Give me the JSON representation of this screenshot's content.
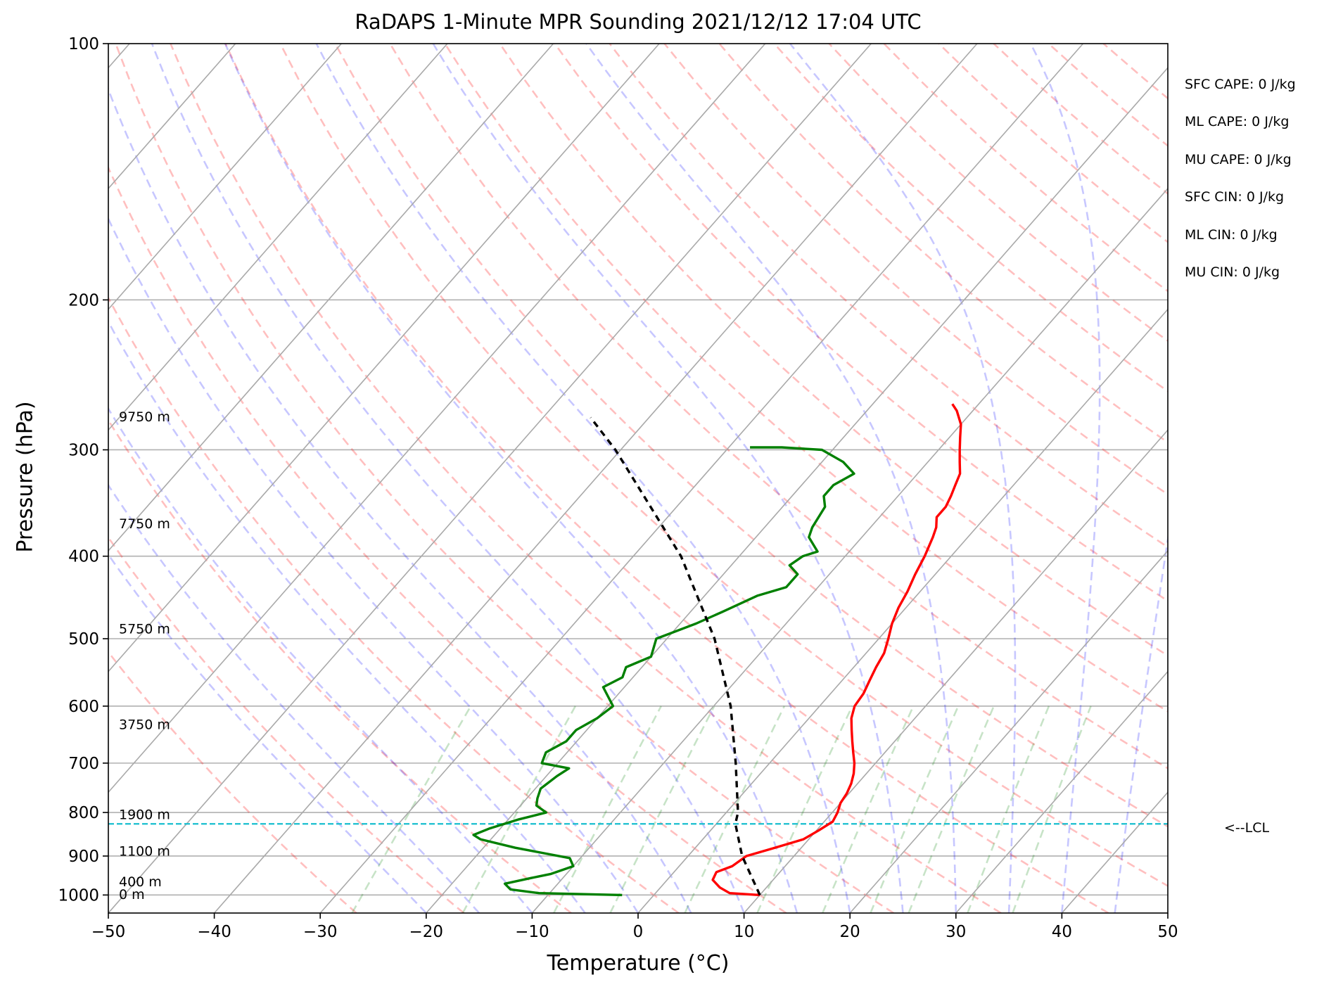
{
  "chart_data": {
    "type": "skew-t",
    "title": "RaDAPS 1-Minute MPR Sounding 2021/12/12 17:04 UTC",
    "xlabel": "Temperature (°C)",
    "ylabel": "Pressure (hPa)",
    "xlim": [
      -50,
      50
    ],
    "ylim": [
      1050,
      100
    ],
    "y_scale": "log",
    "grid": true,
    "x_ticks": [
      "−50",
      "−40",
      "−30",
      "−20",
      "−10",
      "0",
      "10",
      "20",
      "30",
      "40",
      "50"
    ],
    "y_ticks": [
      100,
      200,
      300,
      400,
      500,
      600,
      700,
      800,
      900,
      1000
    ],
    "height_labels": [
      {
        "label": "9750 m",
        "p": 275
      },
      {
        "label": "7750 m",
        "p": 367
      },
      {
        "label": "5750 m",
        "p": 488
      },
      {
        "label": "3750 m",
        "p": 632
      },
      {
        "label": "1900 m",
        "p": 806
      },
      {
        "label": "1100 m",
        "p": 890
      },
      {
        "label": "400 m",
        "p": 967
      },
      {
        "label": "0 m",
        "p": 1000
      }
    ],
    "lcl": {
      "pressure": 825,
      "label": "<--LCL"
    },
    "stats": [
      "SFC CAPE: 0 J/kg",
      "ML CAPE: 0 J/kg",
      "MU CAPE: 0 J/kg",
      "SFC CIN: 0 J/kg",
      "ML CIN: 0 J/kg",
      "MU CIN: 0 J/kg"
    ],
    "series": [
      {
        "name": "Temperature",
        "color": "#ff0000",
        "points": [
          [
            1000,
            10
          ],
          [
            995,
            7
          ],
          [
            980,
            5.6
          ],
          [
            960,
            4.3
          ],
          [
            940,
            4
          ],
          [
            925,
            5
          ],
          [
            900,
            5.5
          ],
          [
            880,
            7.5
          ],
          [
            860,
            9.5
          ],
          [
            840,
            10.2
          ],
          [
            820,
            10.8
          ],
          [
            800,
            10.5
          ],
          [
            780,
            10
          ],
          [
            760,
            9.8
          ],
          [
            740,
            9.4
          ],
          [
            720,
            8.8
          ],
          [
            700,
            8
          ],
          [
            680,
            7
          ],
          [
            660,
            6
          ],
          [
            640,
            5
          ],
          [
            620,
            4
          ],
          [
            600,
            3.3
          ],
          [
            580,
            3.1
          ],
          [
            560,
            2.6
          ],
          [
            540,
            2.1
          ],
          [
            520,
            1.7
          ],
          [
            500,
            0.9
          ],
          [
            480,
            0
          ],
          [
            460,
            -0.7
          ],
          [
            440,
            -1.2
          ],
          [
            420,
            -1.9
          ],
          [
            400,
            -2.5
          ],
          [
            380,
            -3.3
          ],
          [
            370,
            -3.8
          ],
          [
            360,
            -4.6
          ],
          [
            350,
            -4.6
          ],
          [
            340,
            -5
          ],
          [
            330,
            -5.5
          ],
          [
            320,
            -6
          ],
          [
            310,
            -7
          ],
          [
            300,
            -8
          ],
          [
            290,
            -9
          ],
          [
            280,
            -10
          ],
          [
            270,
            -11.5
          ],
          [
            265,
            -12.5
          ]
        ]
      },
      {
        "name": "Dewpoint",
        "color": "#008000",
        "points": [
          [
            1000,
            -3
          ],
          [
            995,
            -11
          ],
          [
            985,
            -14
          ],
          [
            970,
            -15
          ],
          [
            955,
            -13
          ],
          [
            945,
            -11.5
          ],
          [
            925,
            -10
          ],
          [
            905,
            -11
          ],
          [
            880,
            -17
          ],
          [
            860,
            -21
          ],
          [
            850,
            -22
          ],
          [
            835,
            -21
          ],
          [
            815,
            -19
          ],
          [
            800,
            -17
          ],
          [
            785,
            -18.5
          ],
          [
            770,
            -19
          ],
          [
            750,
            -19.5
          ],
          [
            725,
            -19
          ],
          [
            710,
            -18.5
          ],
          [
            700,
            -21.5
          ],
          [
            680,
            -22
          ],
          [
            660,
            -21
          ],
          [
            640,
            -21
          ],
          [
            620,
            -20
          ],
          [
            600,
            -19.5
          ],
          [
            570,
            -22
          ],
          [
            555,
            -21
          ],
          [
            540,
            -21.5
          ],
          [
            525,
            -20
          ],
          [
            500,
            -21
          ],
          [
            480,
            -18.5
          ],
          [
            465,
            -17
          ],
          [
            445,
            -15
          ],
          [
            435,
            -13
          ],
          [
            420,
            -13
          ],
          [
            410,
            -14.5
          ],
          [
            400,
            -14
          ],
          [
            395,
            -13
          ],
          [
            380,
            -15
          ],
          [
            370,
            -15.5
          ],
          [
            350,
            -16
          ],
          [
            340,
            -17
          ],
          [
            330,
            -17
          ],
          [
            320,
            -16
          ],
          [
            310,
            -18
          ],
          [
            300,
            -21
          ],
          [
            298,
            -25
          ],
          [
            298,
            -28
          ]
        ]
      },
      {
        "name": "Parcel",
        "color": "#000000",
        "points": [
          [
            1000,
            10
          ],
          [
            900,
            5.1
          ],
          [
            825,
            1.8
          ],
          [
            800,
            1.1
          ],
          [
            700,
            -3.2
          ],
          [
            600,
            -8.4
          ],
          [
            500,
            -15.5
          ],
          [
            400,
            -25.5
          ],
          [
            300,
            -40.5
          ],
          [
            275,
            -45.5
          ]
        ]
      }
    ],
    "reference_lines": {
      "dry_adiabats": "#ff0000",
      "moist_adiabats": "#0000ff",
      "mixing_ratio": "#008000",
      "isotherms": "#808080"
    }
  }
}
